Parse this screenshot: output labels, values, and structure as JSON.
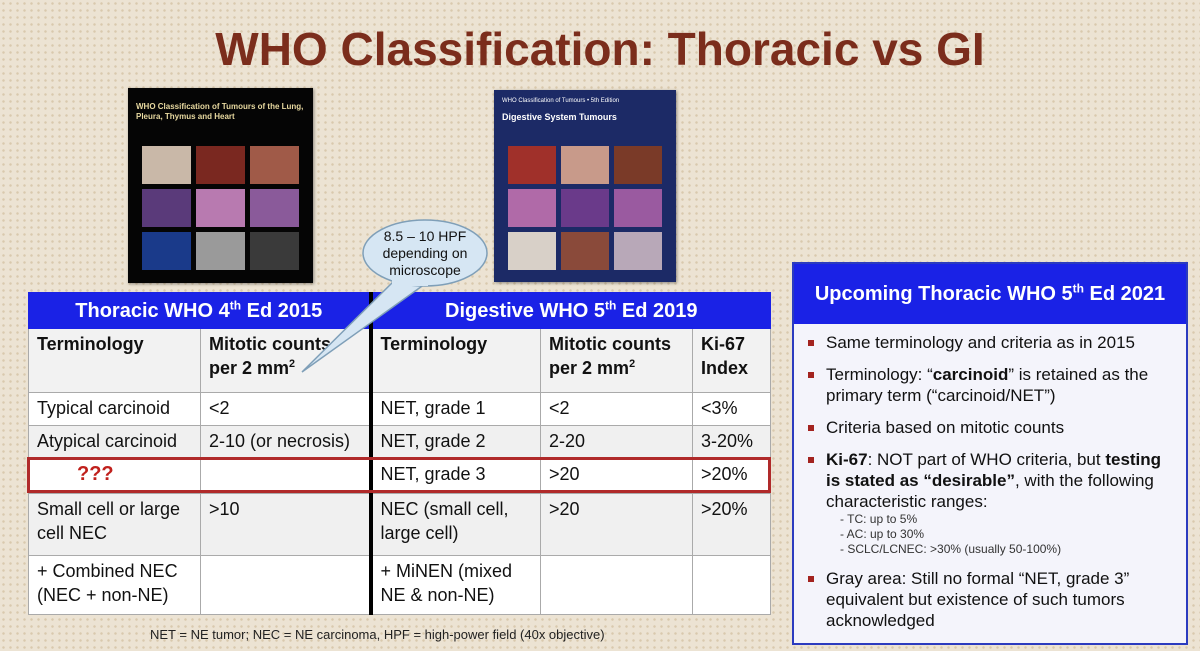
{
  "title": "WHO Classification: Thoracic vs GI",
  "books": [
    {
      "title": "WHO Classification of Tumours of the Lung, Pleura, Thymus and Heart"
    },
    {
      "series": "WHO Classification of Tumours • 5th Edition",
      "title": "Digestive System Tumours"
    }
  ],
  "callout": "8.5 – 10 HPF depending on microscope",
  "table": {
    "groups": [
      {
        "pre": "Thoracic WHO 4",
        "sup": "th",
        "post": " Ed 2015"
      },
      {
        "pre": "Digestive WHO 5",
        "sup": "th",
        "post": " Ed 2019"
      }
    ],
    "header": [
      {
        "pre": "Terminology"
      },
      {
        "pre": "Mitotic counts per 2 mm",
        "sup": "2"
      },
      {
        "pre": "Terminology"
      },
      {
        "pre": "Mitotic counts per 2 mm",
        "sup": "2"
      },
      {
        "pre": "Ki-67 Index"
      }
    ],
    "rows": [
      [
        "Typical carcinoid",
        "<2",
        "NET, grade 1",
        "<2",
        "<3%"
      ],
      [
        "Atypical carcinoid",
        "2-10 (or necrosis)",
        "NET, grade 2",
        "2-20",
        "3-20%"
      ],
      [
        "???",
        null,
        "NET, grade 3",
        ">20",
        ">20%"
      ],
      [
        "Small cell or large cell NEC",
        ">10",
        "NEC (small cell, large cell)",
        ">20",
        ">20%"
      ],
      [
        "+ Combined NEC (NEC + non-NE)",
        null,
        "+ MiNEN (mixed NE & non-NE)",
        null,
        null
      ]
    ]
  },
  "footnote": "NET = NE tumor;  NEC = NE carcinoma, HPF = high-power field (40x objective)",
  "panel": {
    "heading": {
      "pre": "Upcoming Thoracic WHO 5",
      "sup": "th",
      "post": " Ed 2021"
    },
    "bullets": [
      {
        "parts": [
          {
            "t": "Same terminology and criteria as in 2015"
          }
        ]
      },
      {
        "parts": [
          {
            "t": "Terminology: “"
          },
          {
            "t": "carcinoid",
            "b": true
          },
          {
            "t": "” is retained as the primary term (“carcinoid/NET”)"
          }
        ]
      },
      {
        "parts": [
          {
            "t": "Criteria based on mitotic counts"
          }
        ]
      },
      {
        "parts": [
          {
            "t": "Ki-67",
            "b": true
          },
          {
            "t": ": NOT part of WHO criteria, but "
          },
          {
            "t": "testing is stated as “desirable”",
            "b": true
          },
          {
            "t": ", with the following characteristic ranges:"
          }
        ],
        "sub": [
          "- TC: up to 5%",
          "- AC: up to 30%",
          "- SCLC/LCNEC: >30% (usually 50-100%)"
        ]
      },
      {
        "parts": [
          {
            "t": "Gray area: Still no formal “NET, grade 3” equivalent but existence of such tumors acknowledged"
          }
        ]
      }
    ]
  }
}
